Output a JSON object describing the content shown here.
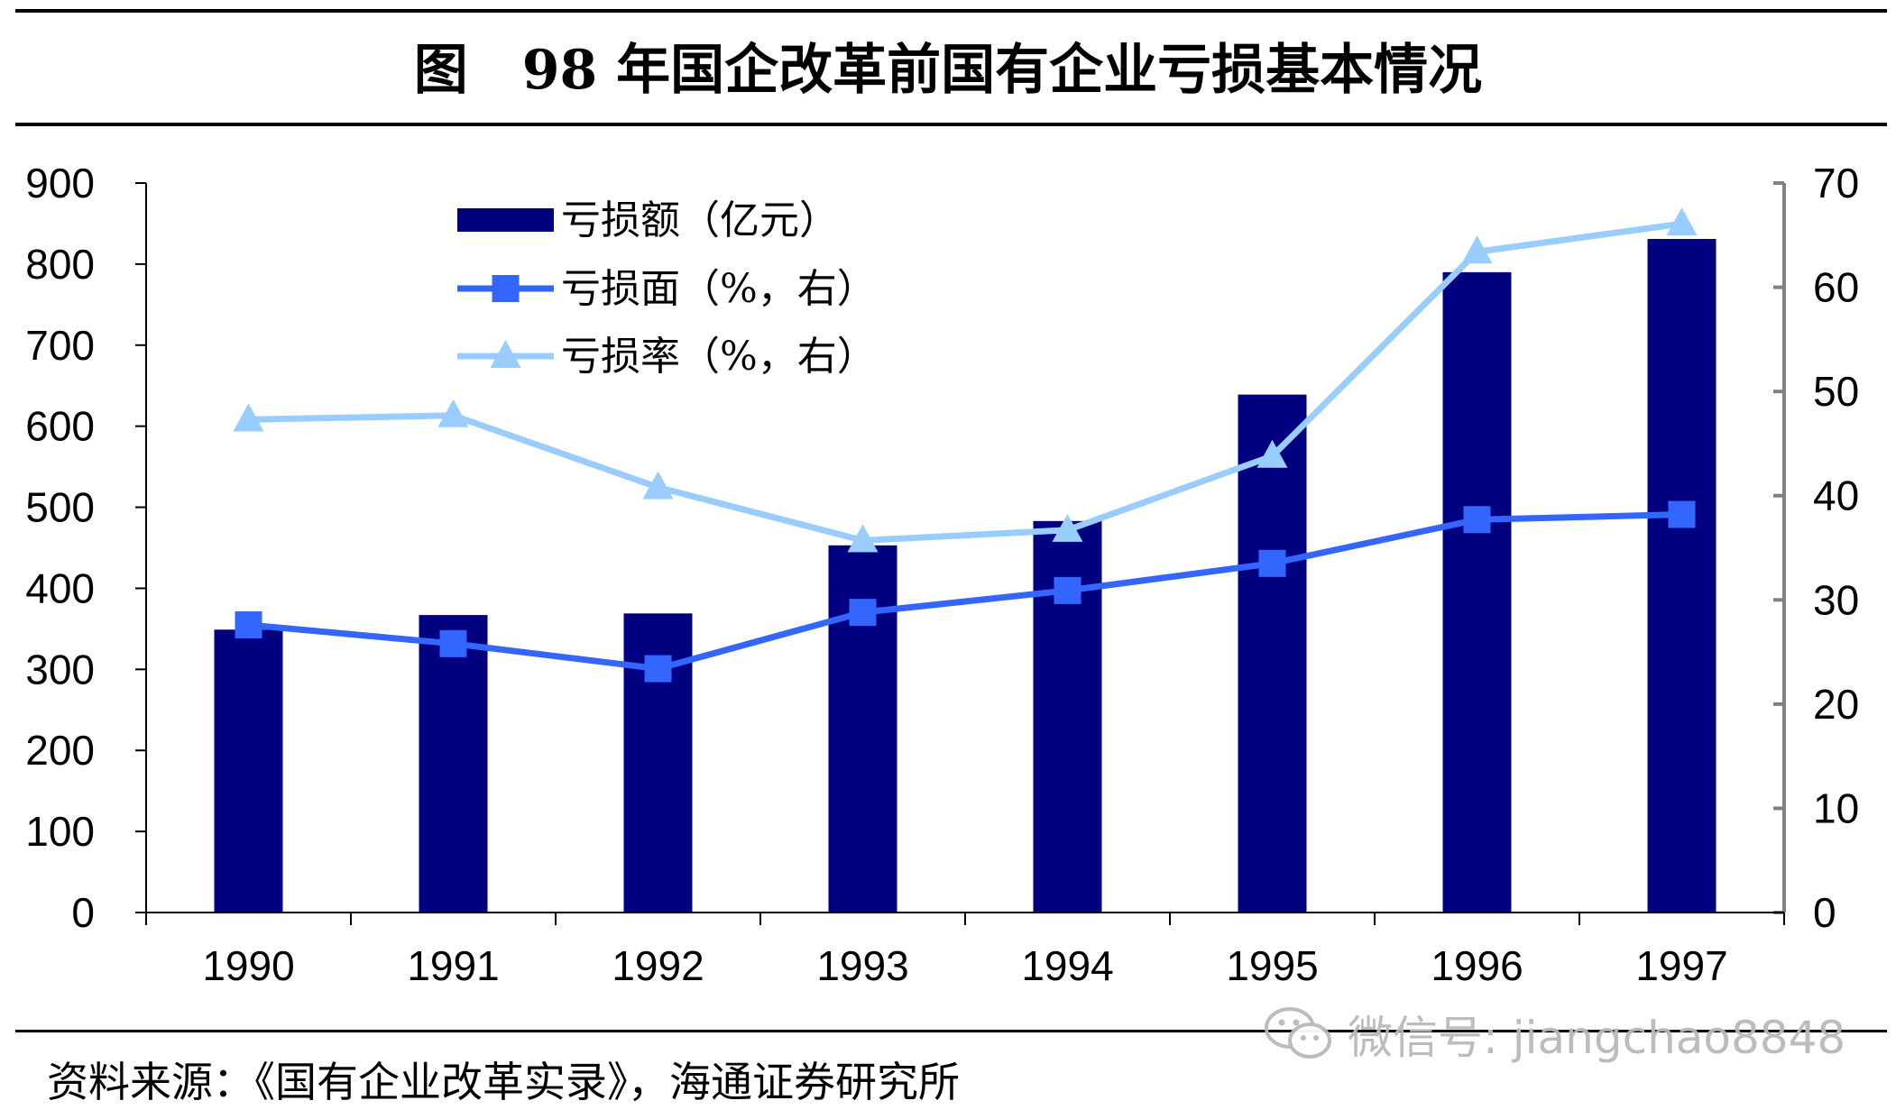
{
  "title": "图　98 年国企改革前国有企业亏损基本情况",
  "source": "资料来源：《国有企业改革实录》，海通证券研究所",
  "watermark": {
    "text": "微信号: jiangchao8848",
    "icon": "wechat-icon"
  },
  "colors": {
    "bars": "#000080",
    "line_mid": "#3366ff",
    "line_light": "#99ccff",
    "axis": "#000000",
    "right_axis": "#808080"
  },
  "chart_data": {
    "type": "bar",
    "categories": [
      "1990",
      "1991",
      "1992",
      "1993",
      "1994",
      "1995",
      "1996",
      "1997"
    ],
    "y_left": {
      "ylim": [
        0,
        900
      ],
      "ticks": [
        "0",
        "100",
        "200",
        "300",
        "400",
        "500",
        "600",
        "700",
        "800",
        "900"
      ]
    },
    "y_right": {
      "ylim": [
        0,
        70
      ],
      "ticks": [
        "0",
        "10",
        "20",
        "30",
        "40",
        "50",
        "60",
        "70"
      ]
    },
    "series": [
      {
        "name": "亏损额（亿元）",
        "type": "bar",
        "axis": "left",
        "color": "#000080",
        "values": [
          349,
          367,
          369,
          453,
          483,
          639,
          790,
          831
        ]
      },
      {
        "name": "亏损面（%，右）",
        "type": "line",
        "axis": "right",
        "marker": "square",
        "color": "#3366ff",
        "values": [
          27.6,
          25.8,
          23.4,
          28.8,
          30.9,
          33.5,
          37.7,
          38.2
        ]
      },
      {
        "name": "亏损率（%，右）",
        "type": "line",
        "axis": "right",
        "marker": "triangle",
        "color": "#99ccff",
        "values": [
          47.3,
          47.7,
          40.8,
          35.7,
          36.7,
          43.8,
          63.4,
          66.1
        ]
      }
    ],
    "legend": "top-left inside plot",
    "grid": false
  }
}
